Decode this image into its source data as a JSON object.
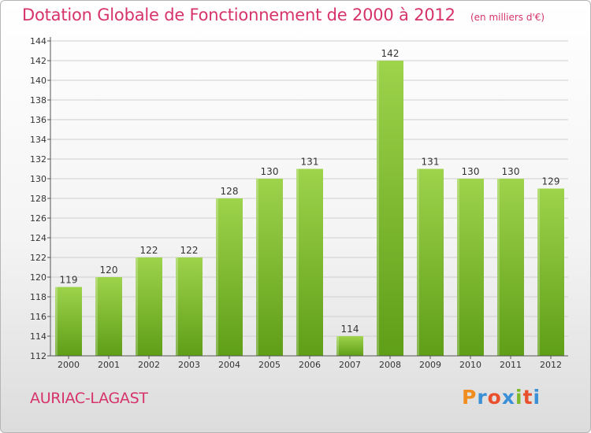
{
  "colors": {
    "title": "#d6336c",
    "bar_light": "#9ed34c",
    "bar_dark": "#5f9e17",
    "axis": "#555555",
    "grid": "#cfcfcf"
  },
  "header": {
    "title": "Dotation Globale de Fonctionnement de 2000 à 2012",
    "subtitle": "(en milliers d'€)"
  },
  "footer": {
    "commune": "AURIAC-LAGAST",
    "logo": "Proxiti"
  },
  "chart_data": {
    "type": "bar",
    "title": "Dotation Globale de Fonctionnement de 2000 à 2012",
    "subtitle": "(en milliers d'€)",
    "categories": [
      "2000",
      "2001",
      "2002",
      "2003",
      "2004",
      "2005",
      "2006",
      "2007",
      "2008",
      "2009",
      "2010",
      "2011",
      "2012"
    ],
    "values": [
      119,
      120,
      122,
      122,
      128,
      130,
      131,
      114,
      142,
      131,
      130,
      130,
      129
    ],
    "ylim": [
      112,
      144
    ],
    "yticks": [
      112,
      114,
      116,
      118,
      120,
      122,
      124,
      126,
      128,
      130,
      132,
      134,
      136,
      138,
      140,
      142,
      144
    ],
    "grid": true,
    "legend": "none"
  }
}
